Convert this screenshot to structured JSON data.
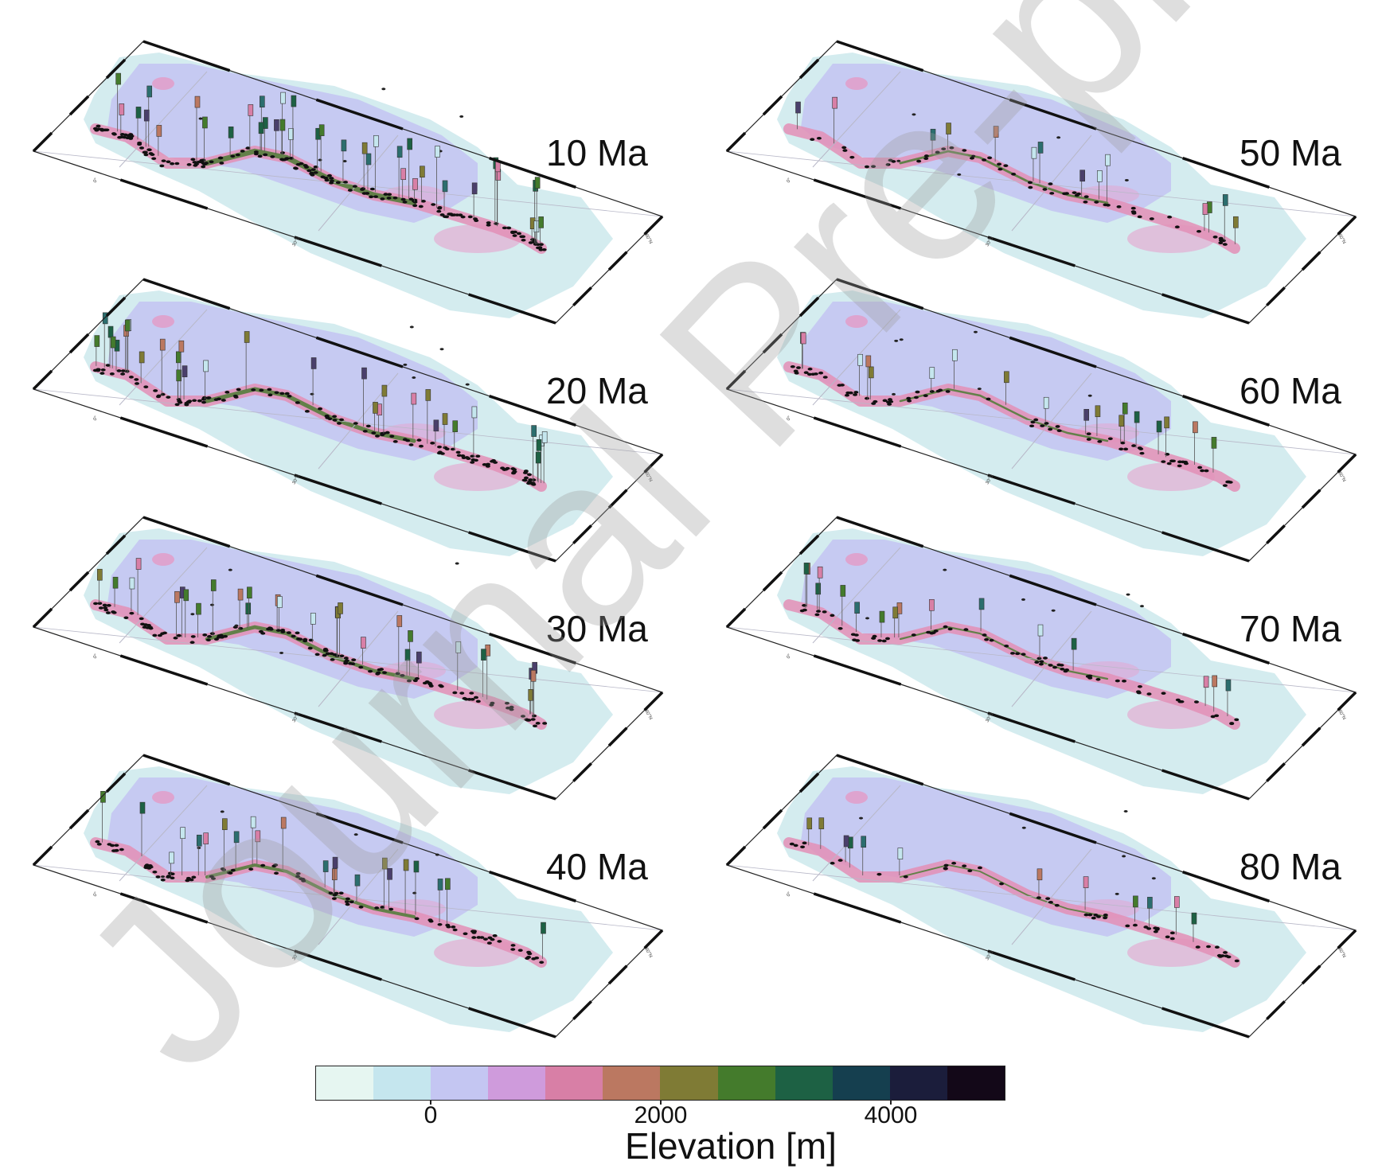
{
  "panels": [
    {
      "label": "10 Ma",
      "density": 1.0,
      "green": 0.9
    },
    {
      "label": "20 Ma",
      "density": 0.8,
      "green": 0.7
    },
    {
      "label": "30 Ma",
      "density": 0.75,
      "green": 0.6
    },
    {
      "label": "40 Ma",
      "density": 0.55,
      "green": 0.5
    },
    {
      "label": "50 Ma",
      "density": 0.35,
      "green": 0.3
    },
    {
      "label": "60 Ma",
      "density": 0.45,
      "green": 0.25
    },
    {
      "label": "70 Ma",
      "density": 0.4,
      "green": 0.2
    },
    {
      "label": "80 Ma",
      "density": 0.3,
      "green": 0.15
    }
  ],
  "map_ticks": {
    "left": "0°",
    "middle": "30°S",
    "right": "60°N"
  },
  "colorbar": {
    "title": "Elevation [m]",
    "ticks": [
      "0",
      "2000",
      "4000"
    ],
    "tick_values": [
      0,
      2000,
      4000
    ],
    "range": [
      -1000,
      5000
    ],
    "colors": [
      "#e6f6f1",
      "#c5e6ee",
      "#c4c6f2",
      "#cf9bdc",
      "#d87fa6",
      "#bb7861",
      "#7f7b35",
      "#447b2c",
      "#1d6144",
      "#153f4f",
      "#1b1d3b",
      "#130818"
    ]
  },
  "watermark": "Journal Pre-proof"
}
